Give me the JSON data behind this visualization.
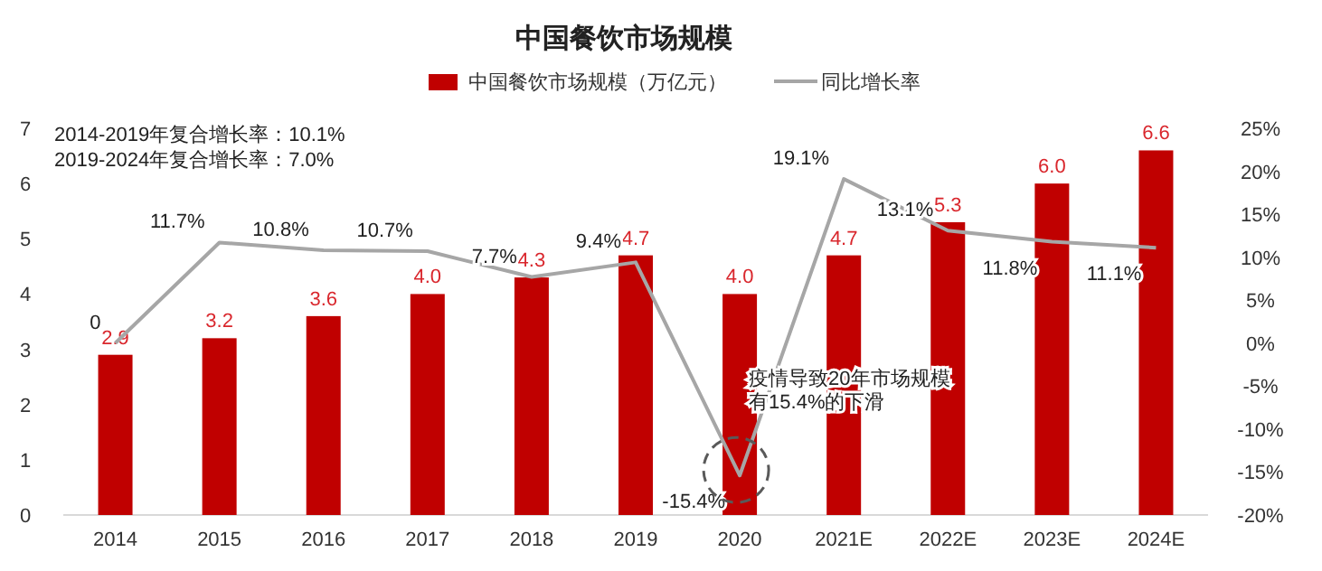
{
  "chart_data": {
    "type": "bar",
    "title": "中国餐饮市场规模",
    "categories": [
      "2014",
      "2015",
      "2016",
      "2017",
      "2018",
      "2019",
      "2020",
      "2021E",
      "2022E",
      "2023E",
      "2024E"
    ],
    "series": [
      {
        "name": "中国餐饮市场规模（万亿元）",
        "color": "#c00000",
        "values": [
          2.9,
          3.2,
          3.6,
          4.0,
          4.3,
          4.7,
          4.0,
          4.7,
          5.3,
          6.0,
          6.6
        ],
        "value_labels": [
          "2.9",
          "3.2",
          "3.6",
          "4.0",
          "4.3",
          "4.7",
          "4.0",
          "4.7",
          "5.3",
          "6.0",
          "6.6"
        ]
      },
      {
        "name": "同比增长率",
        "type": "line",
        "axis": "y2",
        "color": "#a6a6a6",
        "values": [
          0,
          11.7,
          10.8,
          10.7,
          7.7,
          9.4,
          -15.4,
          19.1,
          13.1,
          11.8,
          11.1
        ],
        "value_labels": [
          "0",
          "11.7%",
          "10.8%",
          "10.7%",
          "7.7%",
          "9.4%",
          "-15.4%",
          "19.1%",
          "13.1%",
          "11.8%",
          "11.1%"
        ]
      }
    ],
    "ylim": [
      0,
      7
    ],
    "yticks": [
      0,
      1,
      2,
      3,
      4,
      5,
      6,
      7
    ],
    "y2lim": [
      -20,
      25
    ],
    "y2ticks": [
      {
        "value": -20,
        "label": "-20%"
      },
      {
        "value": -15,
        "label": "-15%"
      },
      {
        "value": -10,
        "label": "-10%"
      },
      {
        "value": -5,
        "label": "-5%"
      },
      {
        "value": 0,
        "label": "0%"
      },
      {
        "value": 5,
        "label": "5%"
      },
      {
        "value": 10,
        "label": "10%"
      },
      {
        "value": 15,
        "label": "15%"
      },
      {
        "value": 20,
        "label": "20%"
      },
      {
        "value": 25,
        "label": "25%"
      }
    ],
    "legend": "top",
    "grid": false,
    "marker": "none",
    "line_style": "solid",
    "annotations": [
      "2014-2019年复合增长率：10.1%",
      "2019-2024年复合增长率：7.0%",
      "疫情导致20年市场规模有15.4%的下滑"
    ]
  }
}
